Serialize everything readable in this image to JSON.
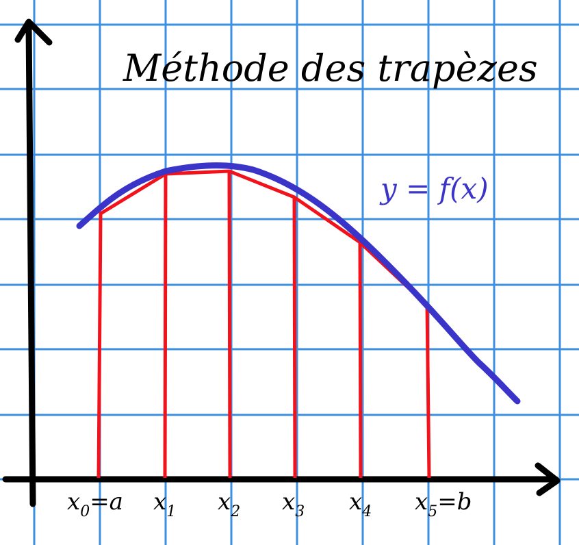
{
  "title": "Méthode des trapèzes",
  "curve_label": "y = f(x)",
  "x_labels": [
    {
      "main": "x",
      "sub": "0",
      "suffix": "=a"
    },
    {
      "main": "x",
      "sub": "1",
      "suffix": ""
    },
    {
      "main": "x",
      "sub": "2",
      "suffix": ""
    },
    {
      "main": "x",
      "sub": "3",
      "suffix": ""
    },
    {
      "main": "x",
      "sub": "4",
      "suffix": ""
    },
    {
      "main": "x",
      "sub": "5",
      "suffix": "=b"
    }
  ],
  "colors": {
    "grid": "#3d8fe0",
    "axis": "#000000",
    "curve": "#3b34c9",
    "trapezoid": "#f2121c",
    "label": "#3b34c9"
  }
}
